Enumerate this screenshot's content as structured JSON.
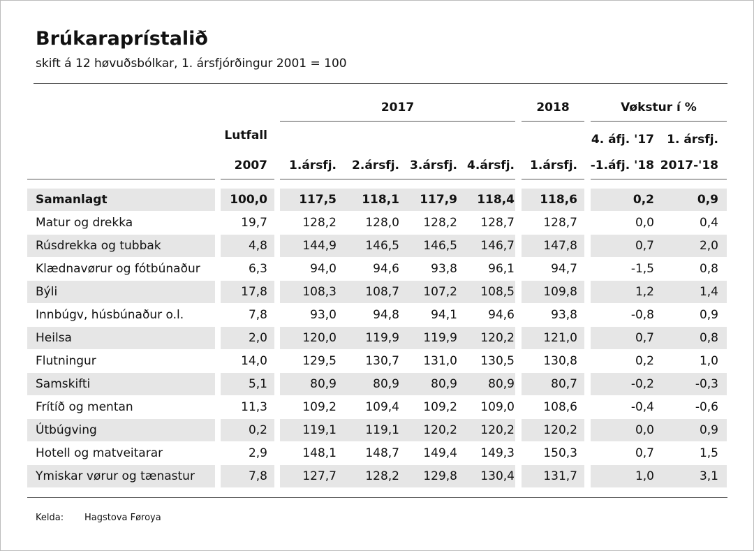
{
  "header": {
    "title": "Brúkaraprístalið",
    "subtitle": "skift á 12 høvuðsbólkar, 1. ársfjórðingur 2001 = 100"
  },
  "table": {
    "group_headers": [
      "2017",
      "2018",
      "Vøkstur í %"
    ],
    "columns": [
      [
        "Lutfall",
        "2007"
      ],
      [
        "1.ársfj."
      ],
      [
        "2.ársfj."
      ],
      [
        "3.ársfj."
      ],
      [
        "4.ársfj."
      ],
      [
        "1.ársfj."
      ],
      [
        "4. áfj. '17",
        "-1.áfj. '18"
      ],
      [
        "1. ársfj.",
        "2017-'18"
      ]
    ],
    "rows": [
      [
        "Samanlagt",
        "100,0",
        "117,5",
        "118,1",
        "117,9",
        "118,4",
        "118,6",
        "0,2",
        "0,9"
      ],
      [
        "Matur og drekka",
        "19,7",
        "128,2",
        "128,0",
        "128,2",
        "128,7",
        "128,7",
        "0,0",
        "0,4"
      ],
      [
        "Rúsdrekka og tubbak",
        "4,8",
        "144,9",
        "146,5",
        "146,5",
        "146,7",
        "147,8",
        "0,7",
        "2,0"
      ],
      [
        "Klædnavørur og fótbúnaður",
        "6,3",
        "94,0",
        "94,6",
        "93,8",
        "96,1",
        "94,7",
        "-1,5",
        "0,8"
      ],
      [
        "Býli",
        "17,8",
        "108,3",
        "108,7",
        "107,2",
        "108,5",
        "109,8",
        "1,2",
        "1,4"
      ],
      [
        "Innbúgv,  húsbúnaður o.l.",
        "7,8",
        "93,0",
        "94,8",
        "94,1",
        "94,6",
        "93,8",
        "-0,8",
        "0,9"
      ],
      [
        "Heilsa",
        "2,0",
        "120,0",
        "119,9",
        "119,9",
        "120,2",
        "121,0",
        "0,7",
        "0,8"
      ],
      [
        "Flutningur",
        "14,0",
        "129,5",
        "130,7",
        "131,0",
        "130,5",
        "130,8",
        "0,2",
        "1,0"
      ],
      [
        "Samskifti",
        "5,1",
        "80,9",
        "80,9",
        "80,9",
        "80,9",
        "80,7",
        "-0,2",
        "-0,3"
      ],
      [
        "Frítíð og mentan",
        "11,3",
        "109,2",
        "109,4",
        "109,2",
        "109,0",
        "108,6",
        "-0,4",
        "-0,6"
      ],
      [
        "Útbúgving",
        "0,2",
        "119,1",
        "119,1",
        "120,2",
        "120,2",
        "120,2",
        "0,0",
        "0,9"
      ],
      [
        "Hotell og matveitarar",
        "2,9",
        "148,1",
        "148,7",
        "149,4",
        "149,3",
        "150,3",
        "0,7",
        "1,5"
      ],
      [
        "Ymiskar vørur og tænastur",
        "7,8",
        "127,7",
        "128,2",
        "129,8",
        "130,4",
        "131,7",
        "1,0",
        "3,1"
      ]
    ]
  },
  "source": {
    "label": "Kelda:",
    "value": "Hagstova Føroya"
  }
}
